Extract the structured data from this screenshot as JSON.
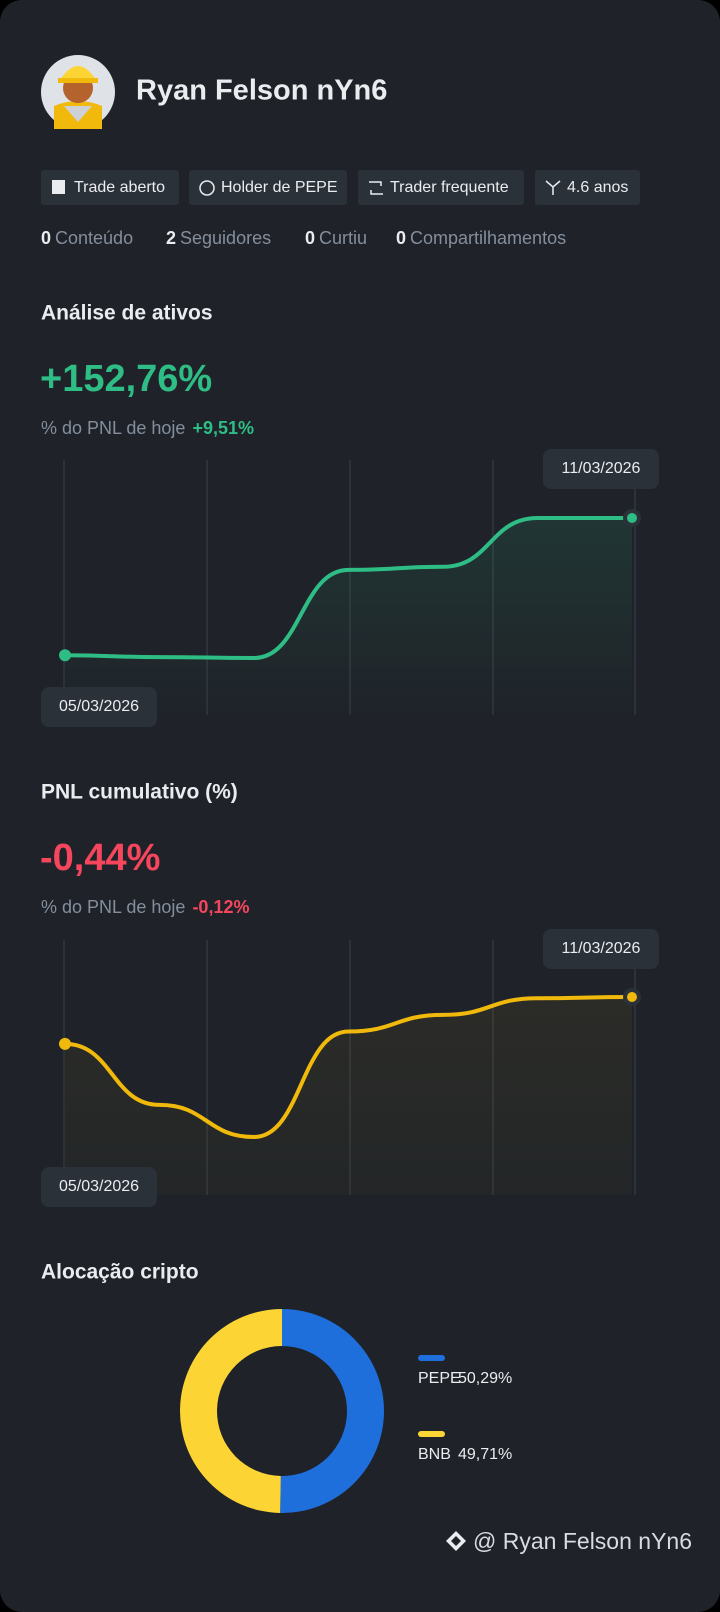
{
  "header": {
    "name": "Ryan Felson nYn6"
  },
  "badges": [
    "Trade aberto",
    "Holder de PEPE",
    "Trader frequente",
    "4.6 anos"
  ],
  "stats": [
    {
      "count": 0,
      "label": "Conteúdo"
    },
    {
      "count": 2,
      "label": "Seguidores"
    },
    {
      "count": 0,
      "label": "Curtiu"
    },
    {
      "count": 0,
      "label": "Compartilhamentos"
    }
  ],
  "asset_analysis": {
    "title": "Análise de ativos",
    "value": "+152,76%",
    "today_label": "% do PNL de hoje",
    "today_value": "+9,51%",
    "chart": {
      "type": "line",
      "x": [
        "05/03/2026",
        null,
        null,
        null,
        null,
        null,
        "11/03/2026"
      ],
      "values": [
        0,
        -2,
        -3,
        95,
        98.5,
        152.76,
        152.76
      ],
      "color": "#2ebd85"
    }
  },
  "cumulative_pnl": {
    "title": "PNL cumulativo (%)",
    "value": "-0,44%",
    "today_label": "% do PNL de hoje",
    "today_value": "-0,12%",
    "chart": {
      "type": "line",
      "x": [
        "05/03/2026",
        null,
        null,
        null,
        null,
        null,
        "11/03/2026"
      ],
      "values": [
        -1.2,
        -2.19,
        -2.71,
        -1.0,
        -0.73,
        -0.46,
        -0.44
      ],
      "color": "#f0b90b"
    }
  },
  "allocation": {
    "title": "Alocação cripto",
    "chart": {
      "type": "donut",
      "categories": [
        "PEPE",
        "BNB"
      ],
      "values": [
        50.29,
        49.71
      ],
      "value_labels": [
        "50,29%",
        "49,71%"
      ],
      "colors": [
        "#1e6fdc",
        "#fcd535"
      ]
    }
  },
  "footer": {
    "handle": "@ Ryan Felson nYn6"
  }
}
